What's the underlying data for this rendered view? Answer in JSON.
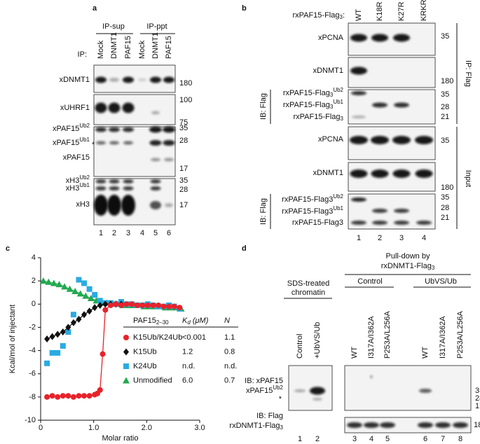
{
  "panel_a": {
    "label": "a",
    "groups": [
      "IP-sup",
      "IP-ppt"
    ],
    "ip_label": "IP:",
    "lanes": [
      "Mock",
      "DNMT1",
      "PAF15",
      "Mock",
      "DNMT1",
      "PAF15"
    ],
    "rows": [
      {
        "text": "xDNMT1"
      },
      {
        "text": "xUHRF1"
      },
      {
        "text": "xPAF15",
        "sup": "Ub2"
      },
      {
        "text": "xPAF15",
        "sup": "Ub1"
      },
      {
        "text": "xPAF15"
      },
      {
        "text": "xH3",
        "sup": "Ub2"
      },
      {
        "text": "xH3",
        "sup": "Ub1"
      },
      {
        "text": "xH3"
      }
    ],
    "asterisk": "*",
    "markers": [
      180,
      100,
      75,
      35,
      28,
      17,
      35,
      28,
      17
    ],
    "lane_numbers": [
      1,
      2,
      3,
      4,
      5,
      6
    ]
  },
  "panel_b": {
    "label": "b",
    "construct": {
      "text": "rxPAF15-Flag",
      "sub": "3",
      "suffix": ":"
    },
    "lanes": [
      "WT",
      "K18R",
      "K27R",
      "KRKR"
    ],
    "ip_rows": [
      {
        "text": "xPCNA"
      },
      {
        "text": "xDNMT1"
      },
      {
        "text": "rxPAF15-Flag",
        "sub": "3",
        "sup": "Ub2"
      },
      {
        "text": "rxPAF15-Flag",
        "sub": "3",
        "sup": "Ub1"
      },
      {
        "text": "rxPAF15-Flag",
        "sub": "3"
      }
    ],
    "ip_markers": [
      35,
      180,
      35,
      28,
      21
    ],
    "ip_ib": "IB: Flag",
    "ip_side": "IP: Flag",
    "input_rows": [
      {
        "text": "xPCNA"
      },
      {
        "text": "xDNMT1"
      },
      {
        "text": "rxPAF15-Flag3",
        "sup": "Ub2"
      },
      {
        "text": "rxPAF15-Flag3",
        "sup": "Ub1"
      },
      {
        "text": "rxPAF15-Flag3"
      }
    ],
    "input_markers": [
      35,
      180,
      35,
      28,
      21
    ],
    "input_ib": "IB: Flag",
    "input_side": "Input",
    "lane_numbers": [
      1,
      2,
      3,
      4
    ]
  },
  "panel_c": {
    "label": "c"
  },
  "chart_data": {
    "type": "scatter",
    "ylabel": "Kcal/mol of injectant",
    "xlabel": "Molar ratio",
    "xlim": [
      0,
      3
    ],
    "ylim": [
      -10,
      4
    ],
    "xticks": [
      0,
      {
        "value": 1,
        "label": "1.0"
      },
      {
        "value": 2,
        "label": "2.0"
      },
      {
        "value": 3,
        "label": "3.0"
      }
    ],
    "yticks": [
      -10,
      -8,
      -6,
      -4,
      -2,
      0,
      2,
      4
    ],
    "legend_header": {
      "name": {
        "text": "PAF15",
        "sub": "2–30"
      },
      "kd": {
        "text": "K",
        "sub": "d",
        "suffix": " (μM)"
      },
      "n": "N"
    },
    "series": [
      {
        "name": "K15Ub/K24Ub",
        "color": "#e8222a",
        "marker": "circle",
        "line": true,
        "kd": "<0.001",
        "n": "1.1",
        "x": [
          0.12,
          0.22,
          0.32,
          0.42,
          0.52,
          0.62,
          0.72,
          0.82,
          0.92,
          1.02,
          1.07,
          1.12,
          1.17,
          1.22,
          1.32,
          1.42,
          1.52,
          1.62,
          1.72,
          1.82,
          1.92,
          2.02,
          2.12,
          2.22,
          2.32,
          2.42,
          2.52,
          2.62
        ],
        "values": [
          -8.0,
          -7.9,
          -8.0,
          -7.9,
          -7.9,
          -8.0,
          -7.9,
          -7.9,
          -7.9,
          -7.8,
          -7.7,
          -7.4,
          -4.3,
          -0.5,
          -0.1,
          0,
          -0.1,
          0,
          0,
          -0.1,
          -0.1,
          -0.1,
          -0.1,
          -0.1,
          -0.2,
          -0.2,
          -0.2,
          -0.3
        ]
      },
      {
        "name": "K15Ub",
        "color": "#111111",
        "marker": "diamond",
        "line": true,
        "kd": "1.2",
        "n": "0.8",
        "x": [
          0.12,
          0.22,
          0.32,
          0.42,
          0.52,
          0.62,
          0.72,
          0.82,
          0.92,
          1.02,
          1.12,
          1.22,
          1.32,
          1.42,
          1.52
        ],
        "values": [
          -3.0,
          -2.8,
          -2.6,
          -2.4,
          -2.0,
          -1.6,
          -1.3,
          -0.9,
          -0.6,
          -0.3,
          -0.1,
          0,
          0,
          0,
          0
        ]
      },
      {
        "name": "K24Ub",
        "color": "#29abe2",
        "marker": "square",
        "line": false,
        "kd": "n.d.",
        "n": "n.d.",
        "x": [
          0.12,
          0.22,
          0.32,
          0.42,
          0.52,
          0.62,
          0.72,
          0.82,
          0.92,
          1.02,
          1.12,
          1.22,
          1.32,
          1.42,
          1.52,
          1.62,
          1.72,
          1.82,
          1.92,
          2.02,
          2.12,
          2.22,
          2.32,
          2.42,
          2.52,
          2.62
        ],
        "values": [
          -5.1,
          -4.2,
          -4.2,
          -3.6,
          -2.4,
          -0.9,
          2.1,
          1.8,
          1.3,
          0.8,
          0.3,
          0.1,
          0.1,
          0,
          0.2,
          0,
          0,
          -0.1,
          -0.1,
          0,
          -0.1,
          -0.2,
          -0.2,
          -0.1,
          -0.2,
          -0.4
        ]
      },
      {
        "name": "Unmodified",
        "color": "#22a94f",
        "marker": "triangle",
        "line": true,
        "kd": "6.0",
        "n": "0.7",
        "x": [
          0.05,
          0.15,
          0.25,
          0.35,
          0.45,
          0.55,
          0.65,
          0.75,
          0.85,
          0.95,
          1.05,
          1.15,
          1.25,
          1.35,
          1.45,
          1.55,
          1.65,
          1.75,
          1.85,
          1.95,
          2.05,
          2.15,
          2.25,
          2.35,
          2.45,
          2.55,
          2.65
        ],
        "values": [
          2.0,
          1.9,
          1.8,
          1.7,
          1.5,
          1.3,
          1.1,
          0.9,
          0.7,
          0.5,
          0.3,
          0.2,
          0.1,
          0,
          0,
          -0.1,
          -0.1,
          -0.1,
          -0.1,
          -0.2,
          -0.2,
          -0.2,
          -0.2,
          -0.3,
          -0.3,
          -0.3,
          -0.4
        ]
      }
    ]
  },
  "panel_d": {
    "label": "d",
    "pulldown": "Pull-down by",
    "bait": {
      "text": "rxDNMT1-Flag",
      "sub": "3"
    },
    "sds": [
      "SDS-treated",
      "chromatin"
    ],
    "groups": [
      "Control",
      "UbVS/Ub"
    ],
    "lanes": [
      "Control",
      "+UbVS/Ub",
      "WT",
      "I317A/I362A",
      "P253A/L256A",
      "WT",
      "I317A/I362A",
      "P253A/L256A"
    ],
    "ib_top": "IB: xPAF15",
    "band": {
      "text": "xPAF15",
      "sup": "Ub2"
    },
    "asterisk": "*",
    "ib_bottom": "IB: Flag",
    "bottom_label": {
      "text": "rxDNMT1-Flag",
      "sub": "3"
    },
    "markers_top": [
      35,
      28,
      17
    ],
    "markers_bottom": [
      180
    ],
    "lane_numbers": [
      1,
      2,
      3,
      4,
      5,
      6,
      7,
      8
    ]
  }
}
